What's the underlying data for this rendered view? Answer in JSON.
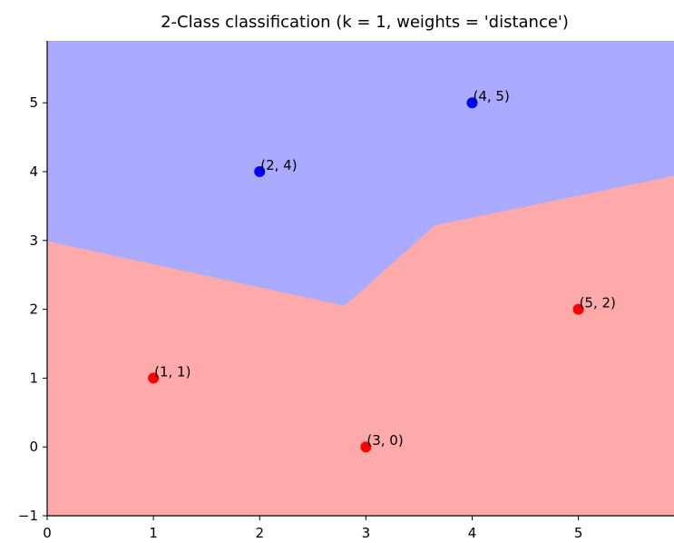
{
  "chart_data": {
    "type": "scatter",
    "title": "2-Class classification (k = 1, weights = 'distance')",
    "xlabel": "",
    "ylabel": "",
    "xlim": [
      0,
      5.9
    ],
    "ylim": [
      -1,
      5.9
    ],
    "x_ticks": [
      0,
      1,
      2,
      3,
      4,
      5
    ],
    "y_ticks": [
      -1,
      0,
      1,
      2,
      3,
      4,
      5
    ],
    "grid": false,
    "background_regions": [
      {
        "class": "red",
        "color": "#ffaaaa"
      },
      {
        "class": "blue",
        "color": "#aaaaff"
      }
    ],
    "points": [
      {
        "x": 1,
        "y": 1,
        "label": "(1, 1)",
        "class": "red",
        "color": "#ff0000"
      },
      {
        "x": 3,
        "y": 0,
        "label": "(3, 0)",
        "class": "red",
        "color": "#ff0000"
      },
      {
        "x": 5,
        "y": 2,
        "label": "(5, 2)",
        "class": "red",
        "color": "#ff0000"
      },
      {
        "x": 2,
        "y": 4,
        "label": "(2, 4)",
        "class": "blue",
        "color": "#0000ff"
      },
      {
        "x": 4,
        "y": 5,
        "label": "(4, 5)",
        "class": "blue",
        "color": "#0000ff"
      }
    ]
  }
}
